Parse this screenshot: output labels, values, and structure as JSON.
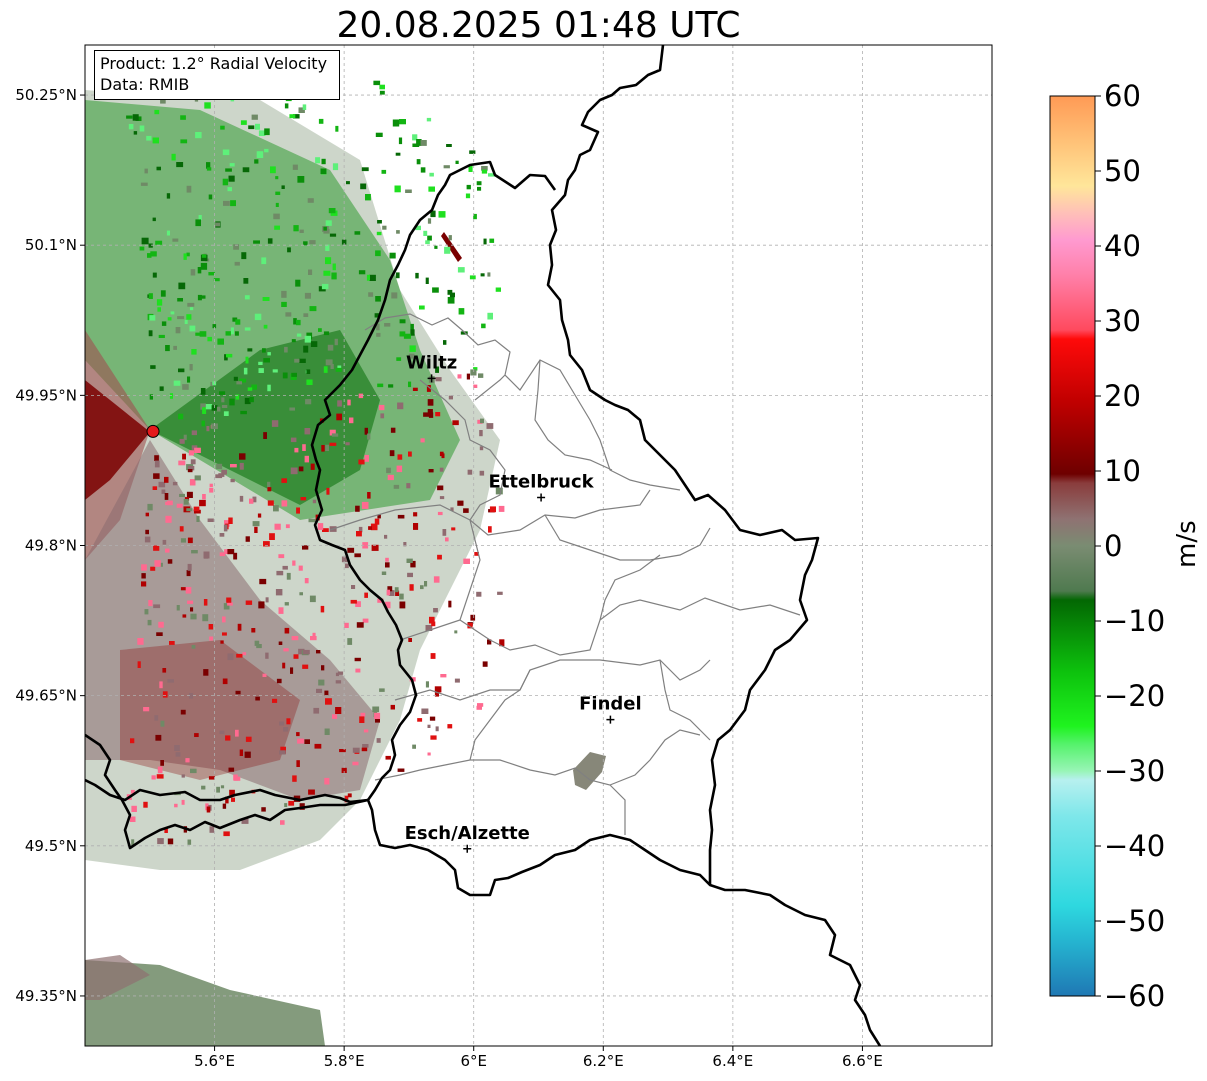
{
  "title": "20.08.2025 01:48 UTC",
  "info_box": {
    "product": "Product: 1.2° Radial Velocity",
    "source": "Data: RMIB"
  },
  "map": {
    "lon_range": [
      5.4,
      6.8
    ],
    "lat_range": [
      49.3,
      50.3
    ],
    "lon_ticks": [
      "5.6°E",
      "5.8°E",
      "6°E",
      "6.2°E",
      "6.4°E",
      "6.6°E"
    ],
    "lat_ticks": [
      "50.25°N",
      "50.1°N",
      "49.95°N",
      "49.8°N",
      "49.65°N",
      "49.5°N",
      "49.35°N"
    ],
    "grid": true,
    "radar_site": {
      "lon": 5.505,
      "lat": 49.914
    },
    "cities": [
      {
        "name": "Wiltz",
        "lon": 5.935,
        "lat": 49.967
      },
      {
        "name": "Ettelbruck",
        "lon": 6.104,
        "lat": 49.848
      },
      {
        "name": "Findel",
        "lon": 6.211,
        "lat": 49.626
      },
      {
        "name": "Esch/Alzette",
        "lon": 5.99,
        "lat": 49.497
      }
    ]
  },
  "colorbar": {
    "label": "m/s",
    "range": [
      -60,
      60
    ],
    "ticks": [
      "60",
      "50",
      "40",
      "30",
      "20",
      "10",
      "0",
      "−10",
      "−20",
      "−30",
      "−40",
      "−50",
      "−60"
    ]
  },
  "colors": {
    "border": "#000000",
    "canton_lines": "#808080",
    "radar_site": "#e41a1c",
    "grid": "#b0b0b0"
  }
}
